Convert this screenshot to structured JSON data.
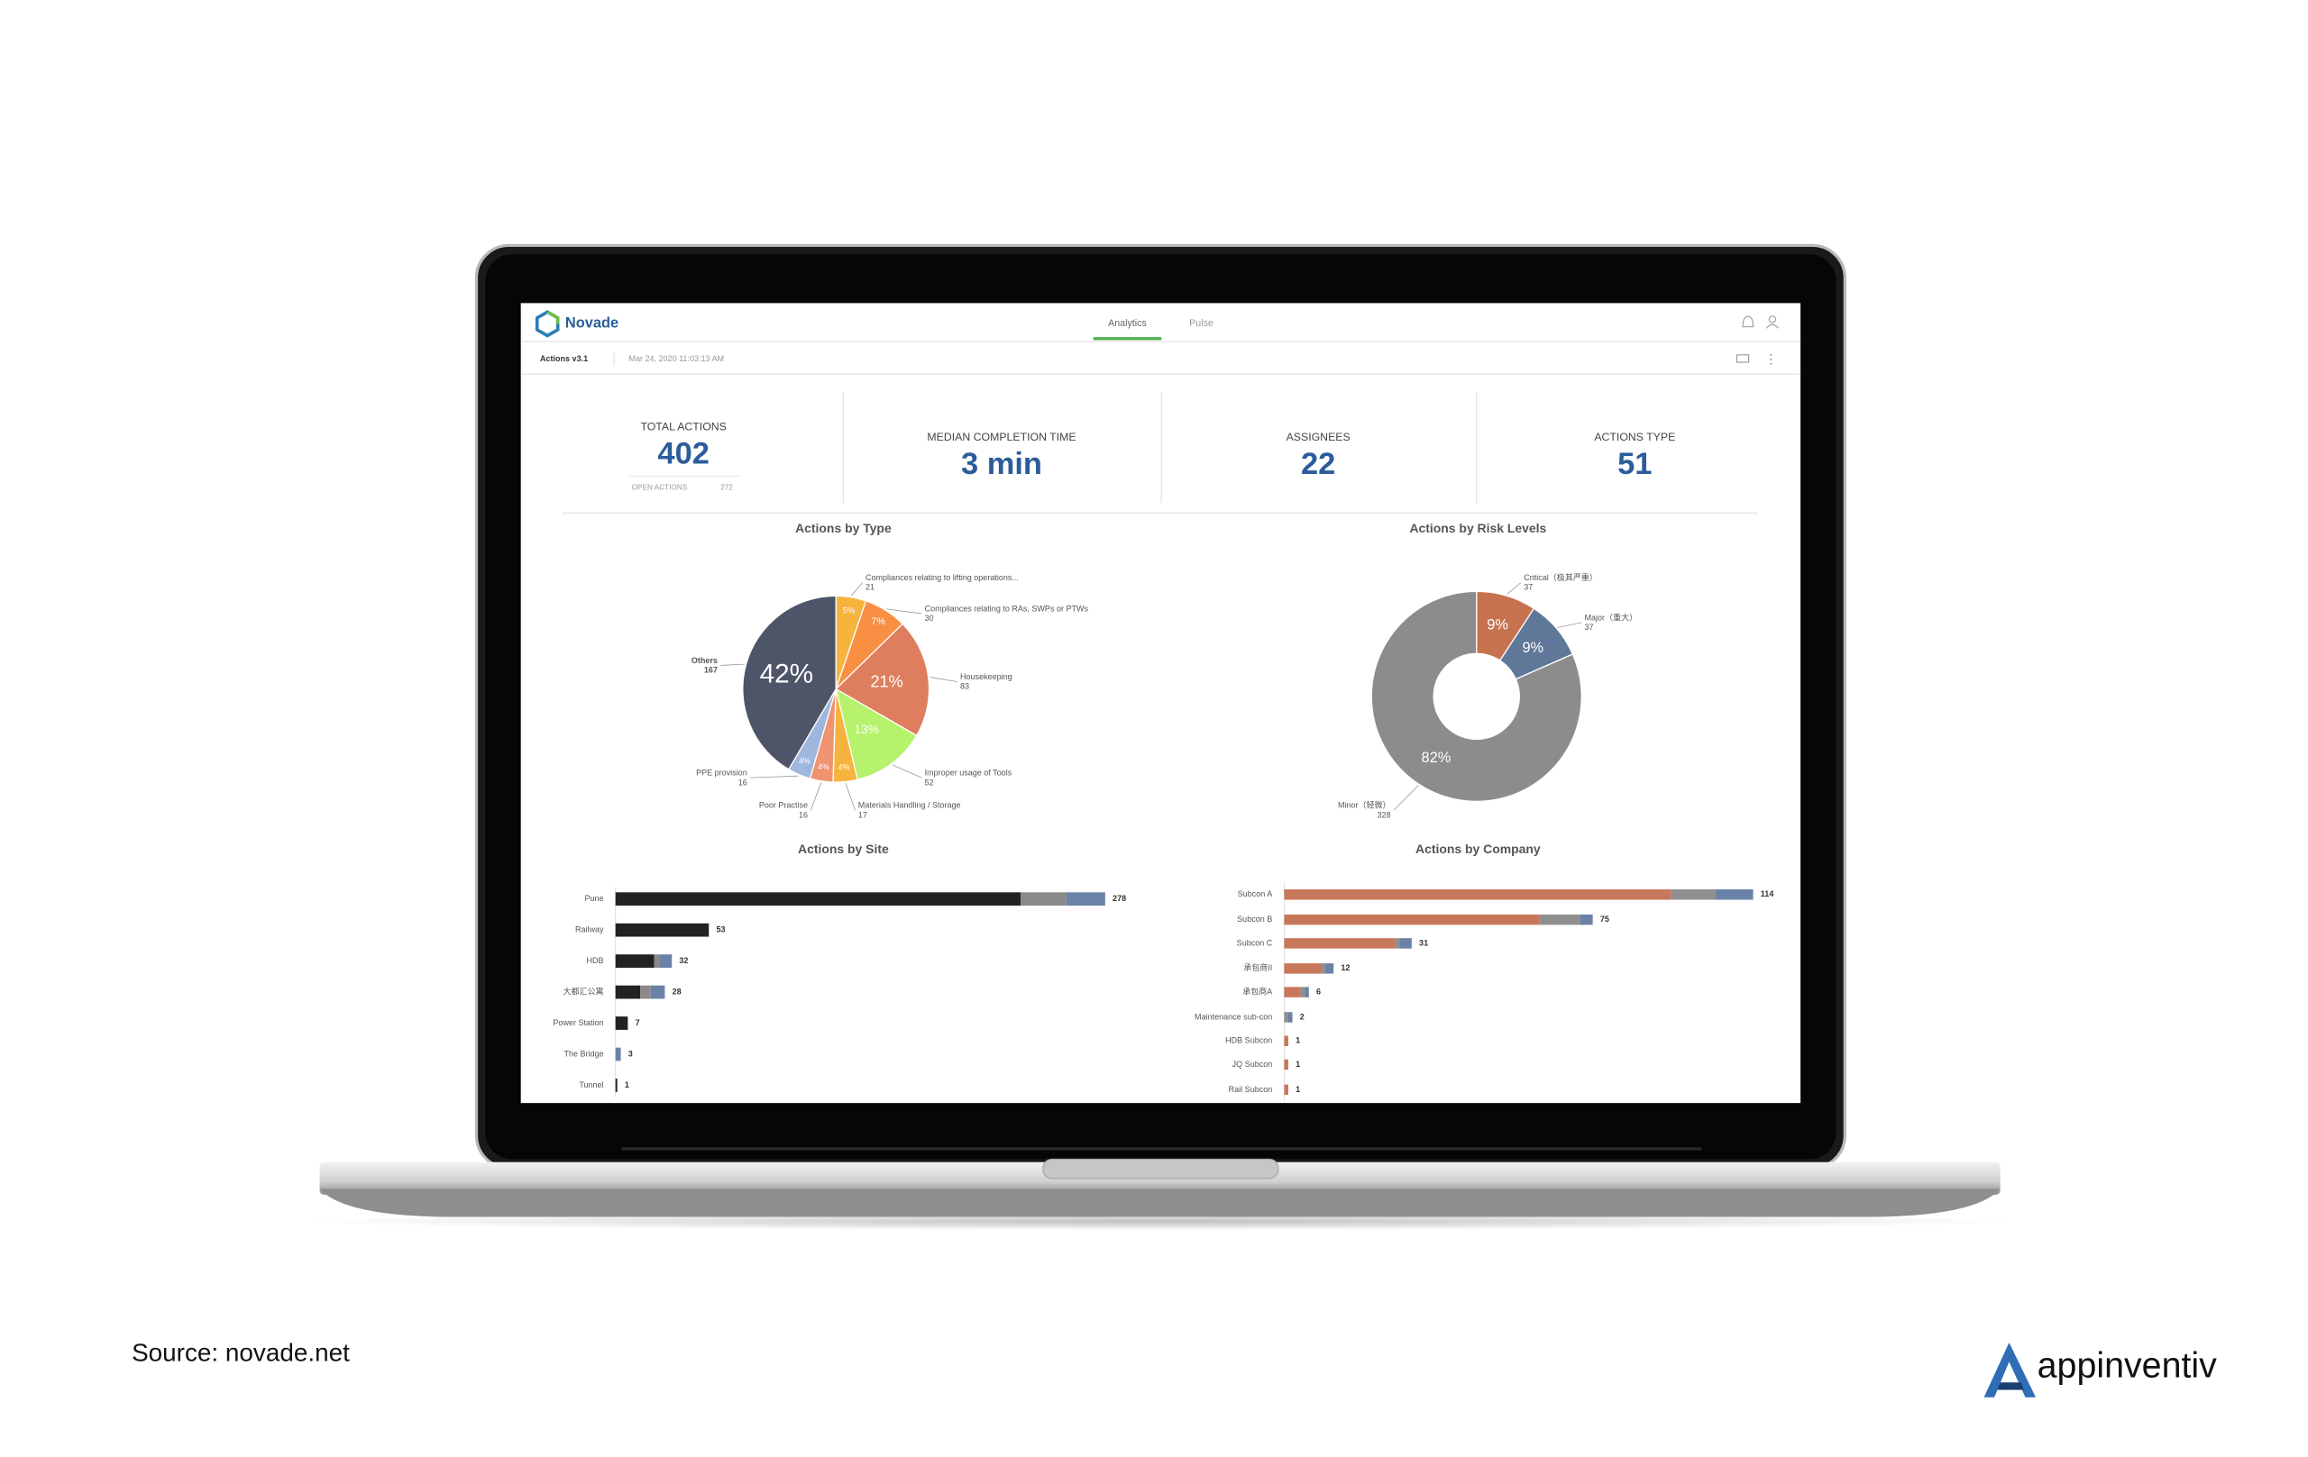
{
  "header": {
    "brand": "Novade",
    "tabs": [
      "Analytics",
      "Pulse"
    ]
  },
  "toolbar": {
    "report": "Actions v3.1",
    "timestamp": "Mar 24, 2020 11:03:13 AM"
  },
  "kpis": [
    {
      "label": "TOTAL ACTIONS",
      "value": 402,
      "sub_label": "OPEN ACTIONS",
      "sub_value": 272
    },
    {
      "label": "MEDIAN COMPLETION TIME",
      "value": "3 min"
    },
    {
      "label": "ASSIGNEES",
      "value": 22
    },
    {
      "label": "ACTIONS TYPE",
      "value": 51
    }
  ],
  "chart_data": [
    {
      "type": "pie",
      "title": "Actions by Type",
      "categories": [
        "Compliances relating to lifting operations...",
        "Compliances relating to RAs, SWPs or PTWs",
        "Housekeeping",
        "Improper usage of Tools",
        "Materials Handling / Storage",
        "Poor Practise",
        "PPE provision",
        "Others"
      ],
      "values": [
        21,
        30,
        83,
        52,
        17,
        16,
        16,
        167
      ],
      "percent_labels": [
        "5%",
        "7%",
        "21%",
        "13%",
        "4%",
        "4%",
        "4%",
        "42%"
      ],
      "colors": [
        "#f6b33d",
        "#f98f42",
        "#df7e5e",
        "#b6f26c",
        "#f6b33d",
        "#ef9370",
        "#9fb6de",
        "#4e5568"
      ]
    },
    {
      "type": "donut",
      "title": "Actions by Risk Levels",
      "categories": [
        "Critical（极其严重）",
        "Major（重大）",
        "Minor（轻微）"
      ],
      "values": [
        37,
        37,
        328
      ],
      "percent_labels": [
        "9%",
        "9%",
        "82%"
      ],
      "colors": [
        "#c7724f",
        "#5f7799",
        "#8c8c8c"
      ]
    },
    {
      "type": "bar",
      "title": "Actions by Site",
      "categories": [
        "Pune",
        "Railway",
        "HDB",
        "大都汇公寓",
        "Power Station",
        "The Bridge",
        "Tunnel"
      ],
      "series": [
        {
          "color": "#222222",
          "values": [
            230,
            53,
            22,
            14,
            7,
            0,
            1
          ]
        },
        {
          "color": "#8a8a8a",
          "values": [
            26,
            0,
            3,
            6,
            0,
            0,
            0
          ]
        },
        {
          "color": "#6a82a8",
          "values": [
            22,
            0,
            7,
            8,
            0,
            3,
            0
          ]
        }
      ],
      "totals": [
        278,
        53,
        32,
        28,
        7,
        3,
        1
      ]
    },
    {
      "type": "bar",
      "title": "Actions by Company",
      "categories": [
        "Subcon A",
        "Subcon B",
        "Subcon C",
        "承包商II",
        "承包商A",
        "Maintenance sub-con",
        "HDB Subcon",
        "JQ Subcon",
        "Rail Subcon"
      ],
      "series": [
        {
          "color": "#c8785a",
          "values": [
            94,
            62,
            27,
            9,
            4,
            0,
            1,
            1,
            1
          ]
        },
        {
          "color": "#8f8f8f",
          "values": [
            11,
            10,
            1,
            1,
            1,
            1,
            0,
            0,
            0
          ]
        },
        {
          "color": "#6a82a8",
          "values": [
            9,
            3,
            3,
            2,
            1,
            1,
            0,
            0,
            0
          ]
        }
      ],
      "totals": [
        114,
        75,
        31,
        12,
        6,
        2,
        1,
        1,
        1
      ]
    }
  ],
  "footer": {
    "source": "Source: novade.net",
    "brand": "appinventiv"
  }
}
